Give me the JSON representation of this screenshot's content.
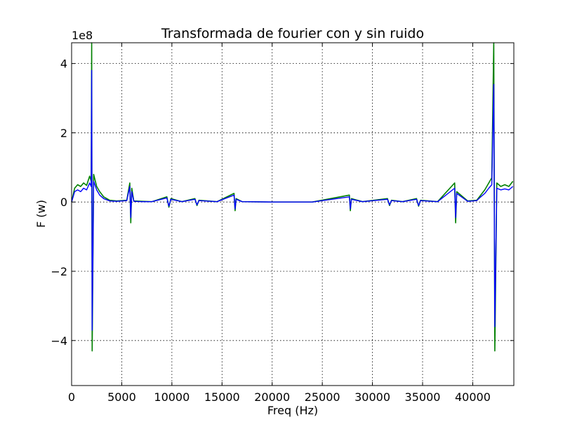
{
  "chart_data": {
    "type": "line",
    "title": "Transformada de fourier con y sin ruido",
    "xlabel": "Freq (Hz)",
    "ylabel": "F (w)",
    "offset_label": "1e8",
    "xlim": [
      0,
      44100
    ],
    "ylim": [
      -5.3,
      4.6
    ],
    "y_scale_note": "values in units of 1e8",
    "grid": true,
    "x_ticks": [
      {
        "value": 0,
        "label": "0"
      },
      {
        "value": 5000,
        "label": "5000"
      },
      {
        "value": 10000,
        "label": "10000"
      },
      {
        "value": 15000,
        "label": "15000"
      },
      {
        "value": 20000,
        "label": "20000"
      },
      {
        "value": 25000,
        "label": "25000"
      },
      {
        "value": 30000,
        "label": "30000"
      },
      {
        "value": 35000,
        "label": "35000"
      },
      {
        "value": 40000,
        "label": "40000"
      }
    ],
    "y_ticks": [
      {
        "value": 4,
        "label": "4"
      },
      {
        "value": 2,
        "label": "2"
      },
      {
        "value": 0,
        "label": "0"
      },
      {
        "value": -2,
        "label": "−2"
      },
      {
        "value": -4,
        "label": "−4"
      }
    ],
    "series": [
      {
        "color": "#008000",
        "x": [
          0,
          300,
          600,
          900,
          1200,
          1500,
          1800,
          1950,
          2000,
          2050,
          2200,
          2500,
          2800,
          3200,
          3800,
          4500,
          5500,
          5800,
          5900,
          6000,
          6200,
          7000,
          8000,
          9500,
          9700,
          9900,
          11000,
          12300,
          12500,
          12700,
          14500,
          16200,
          16300,
          16400,
          17000,
          20000,
          24000,
          27700,
          27800,
          27900,
          29000,
          31500,
          31700,
          31900,
          33000,
          34400,
          34600,
          34800,
          36500,
          38200,
          38300,
          38400,
          39500,
          40400,
          40800,
          41200,
          41600,
          41900,
          42100,
          42200,
          42400,
          42800,
          43200,
          43600,
          44000
        ],
        "values": [
          0,
          0.4,
          0.5,
          0.45,
          0.55,
          0.48,
          0.75,
          0.6,
          4.6,
          -4.3,
          0.8,
          0.45,
          0.3,
          0.15,
          0.05,
          0.03,
          0.05,
          0.55,
          -0.6,
          0.4,
          0.03,
          0.02,
          0.01,
          0.15,
          -0.15,
          0.1,
          0.01,
          0.1,
          -0.1,
          0.05,
          0.01,
          0.25,
          -0.25,
          0.1,
          0.01,
          0.0,
          0.0,
          0.2,
          -0.25,
          0.1,
          0.01,
          0.1,
          -0.1,
          0.05,
          0.01,
          0.1,
          -0.12,
          0.05,
          0.01,
          0.55,
          -0.6,
          0.3,
          0.03,
          0.05,
          0.2,
          0.35,
          0.55,
          0.7,
          4.6,
          -4.3,
          0.55,
          0.45,
          0.5,
          0.45,
          0.6
        ]
      },
      {
        "color": "#0000ff",
        "x": [
          0,
          300,
          600,
          900,
          1200,
          1500,
          1800,
          1950,
          2000,
          2050,
          2200,
          2500,
          2800,
          3200,
          3800,
          4500,
          5500,
          5800,
          5900,
          6000,
          6200,
          7000,
          8000,
          9500,
          9700,
          9900,
          11000,
          12300,
          12500,
          12700,
          14500,
          16200,
          16300,
          16400,
          17000,
          20000,
          24000,
          27700,
          27800,
          27900,
          29000,
          31500,
          31700,
          31900,
          33000,
          34400,
          34600,
          34800,
          36500,
          38200,
          38300,
          38400,
          39500,
          40400,
          40800,
          41200,
          41600,
          41900,
          42100,
          42200,
          42400,
          42800,
          43200,
          43600,
          44000
        ],
        "values": [
          0,
          0.3,
          0.35,
          0.3,
          0.4,
          0.35,
          0.55,
          0.45,
          3.8,
          -3.7,
          0.6,
          0.35,
          0.2,
          0.1,
          0.03,
          0.02,
          0.04,
          0.45,
          -0.45,
          0.3,
          0.02,
          0.01,
          0.01,
          0.12,
          -0.12,
          0.08,
          0.01,
          0.08,
          -0.08,
          0.04,
          0.01,
          0.2,
          -0.2,
          0.08,
          0.01,
          0.0,
          0.0,
          0.15,
          -0.2,
          0.08,
          0.01,
          0.08,
          -0.08,
          0.04,
          0.01,
          0.08,
          -0.1,
          0.04,
          0.01,
          0.4,
          -0.45,
          0.25,
          0.02,
          0.04,
          0.15,
          0.25,
          0.4,
          0.5,
          3.4,
          -3.6,
          0.4,
          0.35,
          0.38,
          0.35,
          0.45
        ]
      }
    ]
  }
}
